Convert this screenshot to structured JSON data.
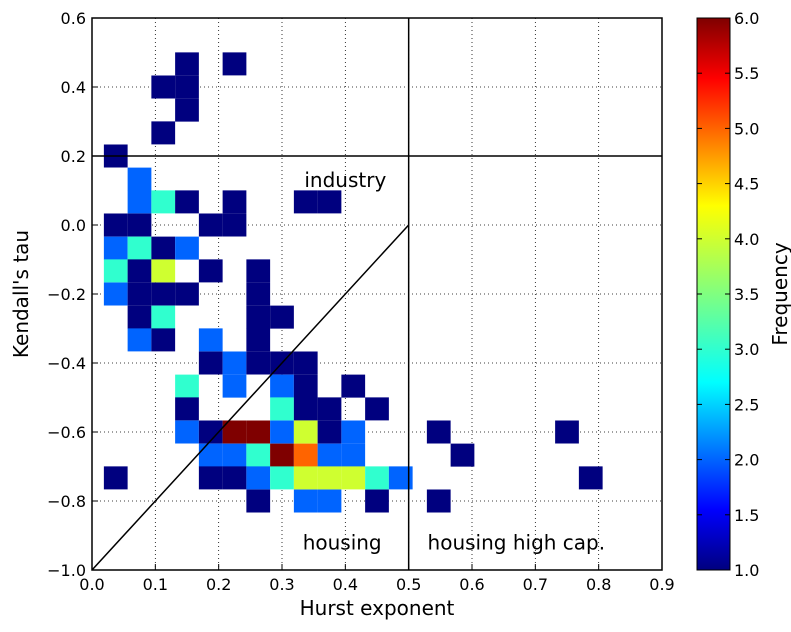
{
  "chart_data": {
    "type": "heatmap",
    "title": "",
    "xlabel": "Hurst exponent",
    "ylabel": "Kendall's tau",
    "xlim": [
      0.0,
      0.9
    ],
    "ylim": [
      -1.0,
      0.6
    ],
    "xticks": [
      "0.0",
      "0.1",
      "0.2",
      "0.3",
      "0.4",
      "0.5",
      "0.6",
      "0.7",
      "0.8",
      "0.9"
    ],
    "yticks": [
      "−1.0",
      "−0.8",
      "−0.6",
      "−0.4",
      "−0.2",
      "0.0",
      "0.2",
      "0.4",
      "0.6"
    ],
    "grid": true,
    "bin_width_x": 0.0375,
    "bin_height_y": 0.0667,
    "colorbar": {
      "label": "Frequency",
      "min": 1.0,
      "max": 6.0,
      "colormap": "jet",
      "ticks": [
        "1.0",
        "1.5",
        "2.0",
        "2.5",
        "3.0",
        "3.5",
        "4.0",
        "4.5",
        "5.0",
        "5.5",
        "6.0"
      ]
    },
    "reference_lines": [
      {
        "type": "vertical",
        "x": 0.5
      },
      {
        "type": "horizontal",
        "y": 0.2
      },
      {
        "type": "diagonal",
        "from": [
          0.0,
          -1.0
        ],
        "to": [
          0.5,
          0.0
        ]
      }
    ],
    "annotations": [
      {
        "text": "industry",
        "x": 0.4,
        "y": 0.13
      },
      {
        "text": "housing",
        "x": 0.395,
        "y": -0.92
      },
      {
        "text": "housing high cap.",
        "x": 0.67,
        "y": -0.92
      }
    ],
    "cells": [
      {
        "x": 0.1125,
        "y": 0.267,
        "v": 1
      },
      {
        "x": 0.1125,
        "y": 0.4,
        "v": 1
      },
      {
        "x": 0.15,
        "y": 0.333,
        "v": 1
      },
      {
        "x": 0.15,
        "y": 0.4,
        "v": 1
      },
      {
        "x": 0.15,
        "y": 0.467,
        "v": 1
      },
      {
        "x": 0.225,
        "y": 0.467,
        "v": 1
      },
      {
        "x": 0.0375,
        "y": 0.2,
        "v": 1
      },
      {
        "x": 0.075,
        "y": 0.133,
        "v": 2
      },
      {
        "x": 0.075,
        "y": 0.067,
        "v": 2
      },
      {
        "x": 0.1125,
        "y": 0.067,
        "v": 3
      },
      {
        "x": 0.15,
        "y": 0.067,
        "v": 1
      },
      {
        "x": 0.225,
        "y": 0.067,
        "v": 1
      },
      {
        "x": 0.3375,
        "y": 0.067,
        "v": 1
      },
      {
        "x": 0.375,
        "y": 0.067,
        "v": 1
      },
      {
        "x": 0.0375,
        "y": 0.0,
        "v": 1
      },
      {
        "x": 0.075,
        "y": 0.0,
        "v": 1
      },
      {
        "x": 0.1875,
        "y": 0.0,
        "v": 1
      },
      {
        "x": 0.225,
        "y": 0.0,
        "v": 1
      },
      {
        "x": 0.0375,
        "y": -0.067,
        "v": 2
      },
      {
        "x": 0.075,
        "y": -0.067,
        "v": 3
      },
      {
        "x": 0.1125,
        "y": -0.067,
        "v": 1
      },
      {
        "x": 0.15,
        "y": -0.067,
        "v": 2
      },
      {
        "x": 0.0375,
        "y": -0.133,
        "v": 3
      },
      {
        "x": 0.075,
        "y": -0.133,
        "v": 1
      },
      {
        "x": 0.1125,
        "y": -0.133,
        "v": 4
      },
      {
        "x": 0.1875,
        "y": -0.133,
        "v": 1
      },
      {
        "x": 0.2625,
        "y": -0.133,
        "v": 1
      },
      {
        "x": 0.0375,
        "y": -0.2,
        "v": 2
      },
      {
        "x": 0.075,
        "y": -0.2,
        "v": 1
      },
      {
        "x": 0.1125,
        "y": -0.2,
        "v": 1
      },
      {
        "x": 0.15,
        "y": -0.2,
        "v": 1
      },
      {
        "x": 0.2625,
        "y": -0.2,
        "v": 1
      },
      {
        "x": 0.075,
        "y": -0.267,
        "v": 1
      },
      {
        "x": 0.1125,
        "y": -0.267,
        "v": 3
      },
      {
        "x": 0.2625,
        "y": -0.267,
        "v": 1
      },
      {
        "x": 0.3,
        "y": -0.267,
        "v": 1
      },
      {
        "x": 0.075,
        "y": -0.333,
        "v": 2
      },
      {
        "x": 0.1125,
        "y": -0.333,
        "v": 1
      },
      {
        "x": 0.1875,
        "y": -0.333,
        "v": 2
      },
      {
        "x": 0.2625,
        "y": -0.333,
        "v": 1
      },
      {
        "x": 0.1875,
        "y": -0.4,
        "v": 1
      },
      {
        "x": 0.225,
        "y": -0.4,
        "v": 2
      },
      {
        "x": 0.2625,
        "y": -0.4,
        "v": 1
      },
      {
        "x": 0.3,
        "y": -0.4,
        "v": 1
      },
      {
        "x": 0.3375,
        "y": -0.4,
        "v": 1
      },
      {
        "x": 0.15,
        "y": -0.467,
        "v": 3
      },
      {
        "x": 0.225,
        "y": -0.467,
        "v": 2
      },
      {
        "x": 0.3,
        "y": -0.467,
        "v": 2
      },
      {
        "x": 0.3375,
        "y": -0.467,
        "v": 1
      },
      {
        "x": 0.4125,
        "y": -0.467,
        "v": 1
      },
      {
        "x": 0.15,
        "y": -0.533,
        "v": 1
      },
      {
        "x": 0.3,
        "y": -0.533,
        "v": 3
      },
      {
        "x": 0.3375,
        "y": -0.533,
        "v": 1
      },
      {
        "x": 0.375,
        "y": -0.533,
        "v": 1
      },
      {
        "x": 0.45,
        "y": -0.533,
        "v": 1
      },
      {
        "x": 0.15,
        "y": -0.6,
        "v": 2
      },
      {
        "x": 0.1875,
        "y": -0.6,
        "v": 1
      },
      {
        "x": 0.225,
        "y": -0.6,
        "v": 6
      },
      {
        "x": 0.2625,
        "y": -0.6,
        "v": 6
      },
      {
        "x": 0.3,
        "y": -0.6,
        "v": 2
      },
      {
        "x": 0.3375,
        "y": -0.6,
        "v": 4
      },
      {
        "x": 0.375,
        "y": -0.6,
        "v": 1
      },
      {
        "x": 0.4125,
        "y": -0.6,
        "v": 2
      },
      {
        "x": 0.5475,
        "y": -0.6,
        "v": 1
      },
      {
        "x": 0.75,
        "y": -0.6,
        "v": 1
      },
      {
        "x": 0.1875,
        "y": -0.667,
        "v": 2
      },
      {
        "x": 0.225,
        "y": -0.667,
        "v": 2
      },
      {
        "x": 0.2625,
        "y": -0.667,
        "v": 3
      },
      {
        "x": 0.3,
        "y": -0.667,
        "v": 6
      },
      {
        "x": 0.3375,
        "y": -0.667,
        "v": 5
      },
      {
        "x": 0.375,
        "y": -0.667,
        "v": 2
      },
      {
        "x": 0.4125,
        "y": -0.667,
        "v": 2
      },
      {
        "x": 0.585,
        "y": -0.667,
        "v": 1
      },
      {
        "x": 0.0375,
        "y": -0.733,
        "v": 1
      },
      {
        "x": 0.1875,
        "y": -0.733,
        "v": 1
      },
      {
        "x": 0.225,
        "y": -0.733,
        "v": 1
      },
      {
        "x": 0.2625,
        "y": -0.733,
        "v": 2
      },
      {
        "x": 0.3,
        "y": -0.733,
        "v": 3
      },
      {
        "x": 0.3375,
        "y": -0.733,
        "v": 4
      },
      {
        "x": 0.375,
        "y": -0.733,
        "v": 4
      },
      {
        "x": 0.4125,
        "y": -0.733,
        "v": 4
      },
      {
        "x": 0.45,
        "y": -0.733,
        "v": 3
      },
      {
        "x": 0.4875,
        "y": -0.733,
        "v": 2
      },
      {
        "x": 0.7875,
        "y": -0.733,
        "v": 1
      },
      {
        "x": 0.2625,
        "y": -0.8,
        "v": 1
      },
      {
        "x": 0.3375,
        "y": -0.8,
        "v": 2
      },
      {
        "x": 0.375,
        "y": -0.8,
        "v": 2
      },
      {
        "x": 0.45,
        "y": -0.8,
        "v": 1
      },
      {
        "x": 0.5475,
        "y": -0.8,
        "v": 1
      }
    ]
  }
}
